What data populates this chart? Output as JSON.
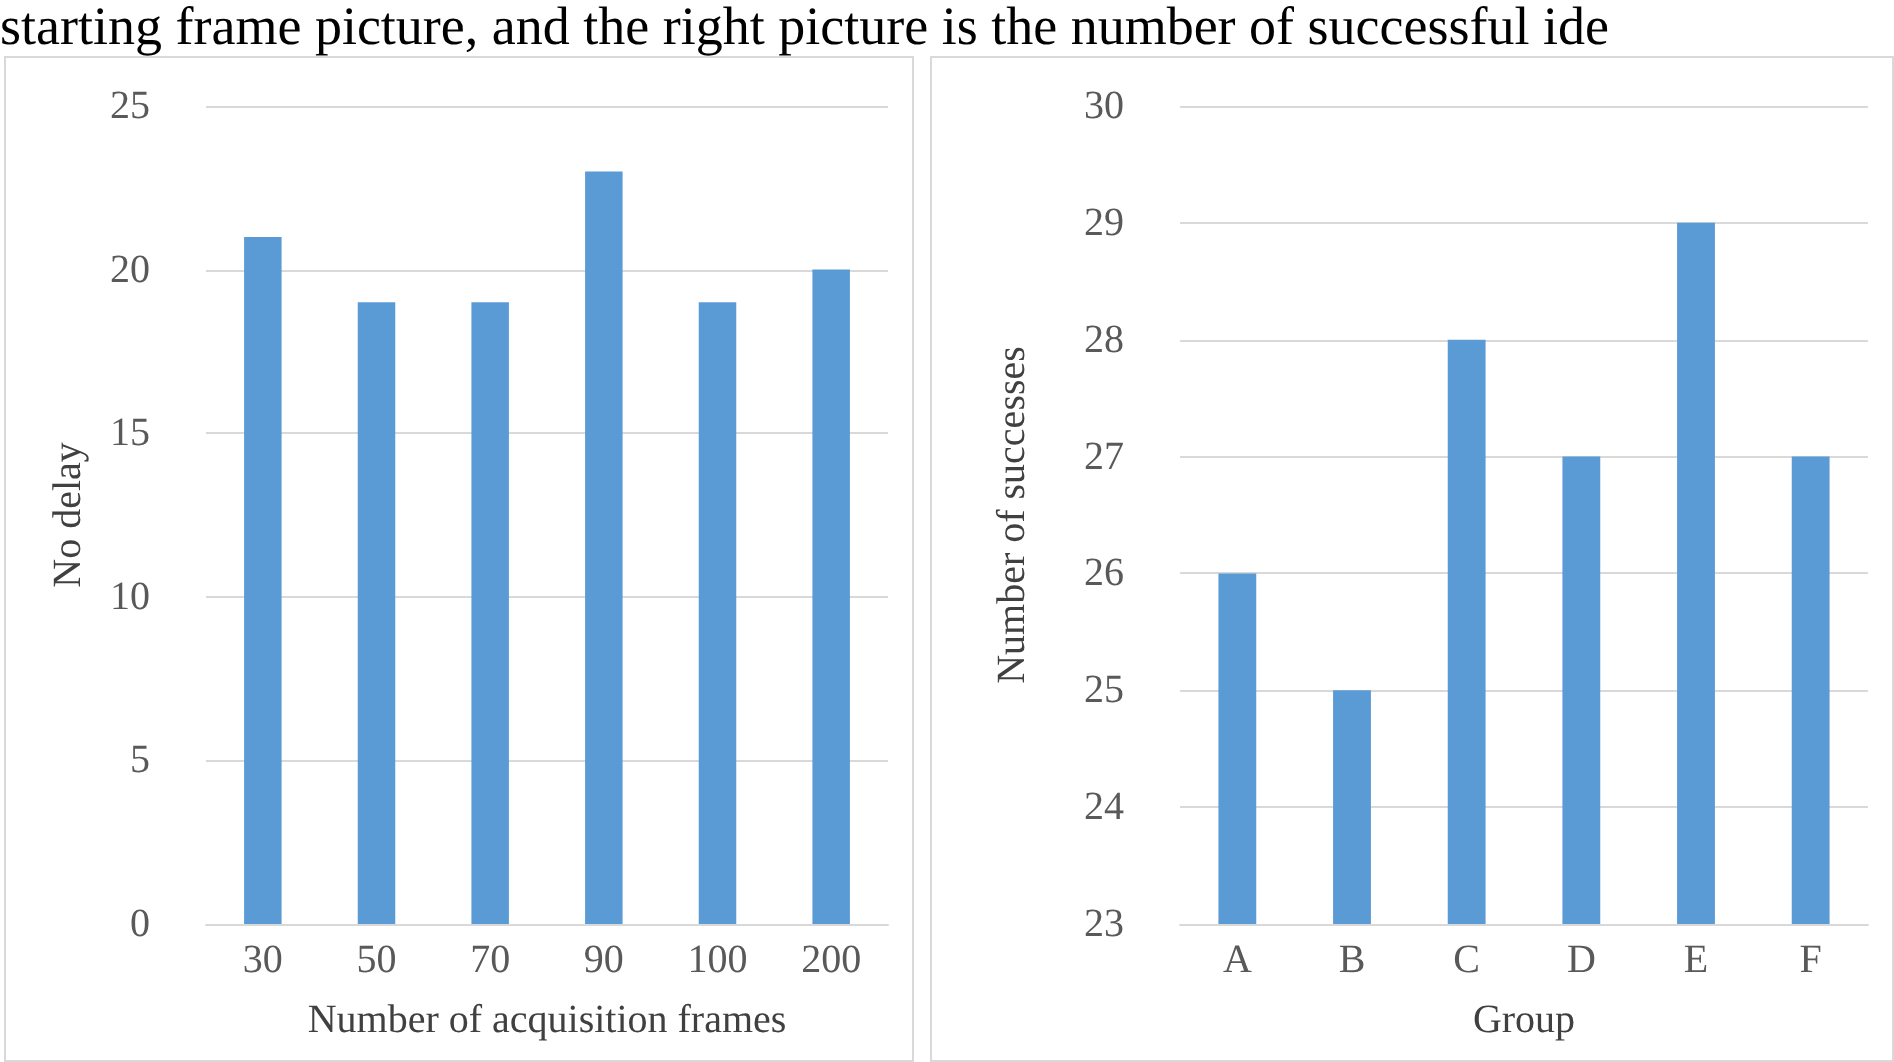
{
  "chart_data": [
    {
      "type": "bar",
      "annotations": [
        "starting frame picture, and the right picture is the number of successful ide"
      ],
      "xlabel": "Number of acquisition frames",
      "ylabel": "No delay",
      "categories": [
        "30",
        "50",
        "70",
        "90",
        "100",
        "200"
      ],
      "values": [
        21,
        19,
        19,
        23,
        19,
        20
      ],
      "color": "#5b9bd5",
      "ylim": [
        0,
        25
      ],
      "yticks": [
        0,
        5,
        10,
        15,
        20,
        25
      ],
      "grid": "y"
    },
    {
      "type": "bar",
      "xlabel": "Group",
      "ylabel": "Number of successes",
      "categories": [
        "A",
        "B",
        "C",
        "D",
        "E",
        "F"
      ],
      "values": [
        26,
        25,
        28,
        27,
        29,
        27
      ],
      "color": "#5b9bd5",
      "ylim": [
        23,
        30
      ],
      "yticks": [
        23,
        24,
        25,
        26,
        27,
        28,
        29,
        30
      ],
      "grid": "y"
    }
  ]
}
